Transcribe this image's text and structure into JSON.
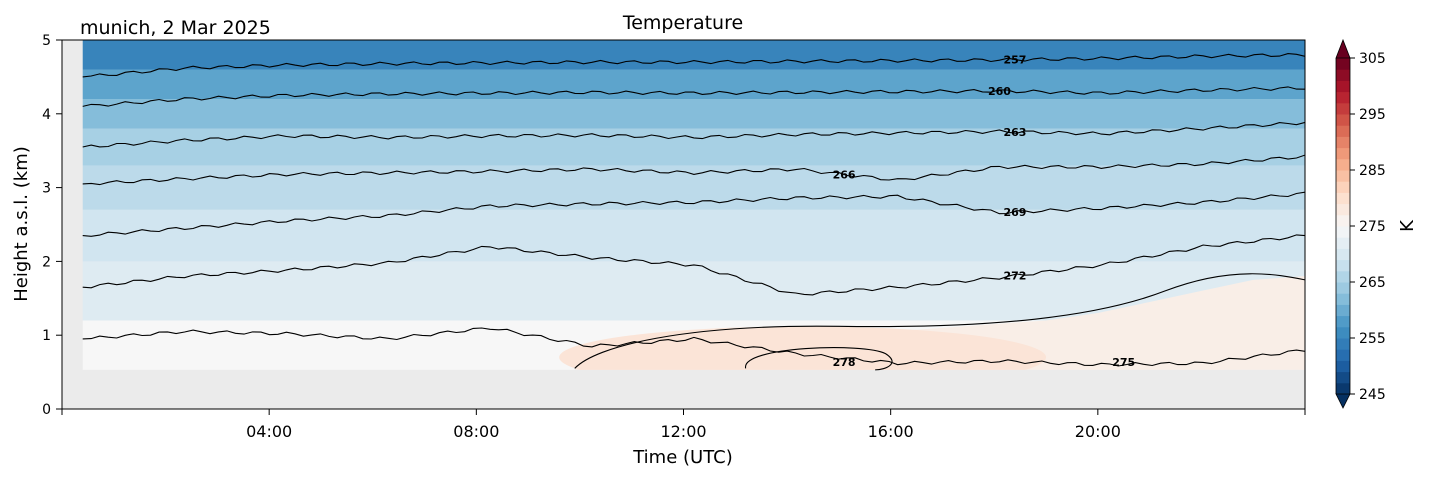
{
  "header": {
    "title": "Temperature",
    "location_date": "munich, 2 Mar 2025"
  },
  "chart_data": {
    "type": "heatmap",
    "title": "Temperature",
    "subtitle": "munich, 2 Mar 2025",
    "xlabel": "Time (UTC)",
    "ylabel": "Height a.s.l. (km)",
    "xlim_hours": [
      0,
      24
    ],
    "ylim_km": [
      0,
      5
    ],
    "x_ticks": [
      {
        "hour": 4,
        "label": "04:00"
      },
      {
        "hour": 8,
        "label": "08:00"
      },
      {
        "hour": 12,
        "label": "12:00"
      },
      {
        "hour": 16,
        "label": "16:00"
      },
      {
        "hour": 20,
        "label": "20:00"
      }
    ],
    "y_ticks": [
      {
        "km": 0,
        "label": "0"
      },
      {
        "km": 1,
        "label": "1"
      },
      {
        "km": 2,
        "label": "2"
      },
      {
        "km": 3,
        "label": "3"
      },
      {
        "km": 4,
        "label": "4"
      },
      {
        "km": 5,
        "label": "5"
      }
    ],
    "masked_below_km": 0.53,
    "colorbar": {
      "label": "K",
      "range": [
        245,
        305
      ],
      "step": 2,
      "extend": "both",
      "ticks": [
        245,
        255,
        265,
        275,
        285,
        295,
        305
      ],
      "colormap": "RdBu_r"
    },
    "contours": [
      {
        "level": 257,
        "label": "257",
        "label_x_hour": 18.4,
        "heights_km": [
          4.5,
          4.62,
          4.66,
          4.68,
          4.69,
          4.7,
          4.7,
          4.71,
          4.72,
          4.73,
          4.75,
          4.78,
          4.8
        ]
      },
      {
        "level": 260,
        "label": "260",
        "label_x_hour": 18.1,
        "heights_km": [
          4.1,
          4.2,
          4.25,
          4.27,
          4.28,
          4.29,
          4.28,
          4.29,
          4.3,
          4.31,
          4.28,
          4.32,
          4.35
        ]
      },
      {
        "level": 263,
        "label": "263",
        "label_x_hour": 18.4,
        "heights_km": [
          3.55,
          3.64,
          3.7,
          3.68,
          3.7,
          3.71,
          3.68,
          3.72,
          3.74,
          3.76,
          3.73,
          3.8,
          3.88
        ]
      },
      {
        "level": 266,
        "label": "266",
        "label_x_hour": 15.1,
        "heights_km": [
          3.05,
          3.12,
          3.18,
          3.2,
          3.22,
          3.25,
          3.2,
          3.25,
          3.1,
          3.28,
          3.28,
          3.32,
          3.42
        ]
      },
      {
        "level": 269,
        "label": "269",
        "label_x_hour": 18.4,
        "heights_km": [
          2.35,
          2.45,
          2.55,
          2.62,
          2.75,
          2.78,
          2.8,
          2.86,
          2.88,
          2.66,
          2.72,
          2.8,
          2.92
        ]
      },
      {
        "level": 272,
        "label": "272",
        "label_x_hour": 18.4,
        "heights_km": [
          1.65,
          1.8,
          1.88,
          1.98,
          2.2,
          2.05,
          1.95,
          1.55,
          1.65,
          1.78,
          1.95,
          2.2,
          2.35
        ]
      },
      {
        "level": 275,
        "label": "275",
        "label_x_hour": 20.5,
        "heights_km": [
          0.95,
          1.05,
          1.02,
          0.95,
          1.1,
          0.85,
          0.95,
          0.75,
          0.62,
          0.65,
          0.6,
          0.62,
          0.8
        ]
      },
      {
        "level": 278,
        "label": "278",
        "label_x_hour": 15.1,
        "heights_km": []
      }
    ],
    "fill_levels": [
      {
        "from_km": 0.53,
        "to_km": 1.2,
        "temp_k": 275
      },
      {
        "from_km": 1.2,
        "to_km": 2.0,
        "temp_k": 271
      },
      {
        "from_km": 2.0,
        "to_km": 2.7,
        "temp_k": 269
      },
      {
        "from_km": 2.7,
        "to_km": 3.3,
        "temp_k": 267
      },
      {
        "from_km": 3.3,
        "to_km": 3.8,
        "temp_k": 265
      },
      {
        "from_km": 3.8,
        "to_km": 4.2,
        "temp_k": 262
      },
      {
        "from_km": 4.2,
        "to_km": 4.6,
        "temp_k": 259
      },
      {
        "from_km": 4.6,
        "to_km": 5.0,
        "temp_k": 255
      }
    ],
    "warm_region": {
      "x_start_hour": 9.9,
      "x_end_hour": 24,
      "max_temp_k": 279
    }
  },
  "colors": {
    "background": "#ffffff",
    "masked": "#ebebeb",
    "contour": "#000000"
  }
}
